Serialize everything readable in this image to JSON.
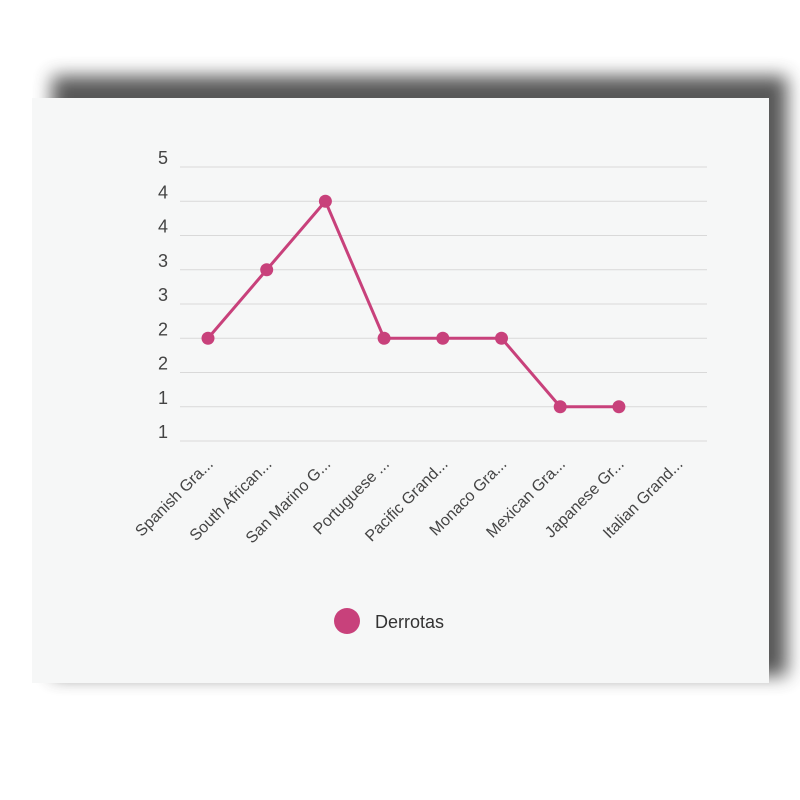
{
  "chart_data": {
    "type": "line",
    "categories": [
      "Spanish Gra...",
      "South African...",
      "San Marino G...",
      "Portuguese ...",
      "Pacific Grand...",
      "Monaco Gra...",
      "Mexican Gra...",
      "Japanese Gr...",
      "Italian Grand..."
    ],
    "series": [
      {
        "name": "Derrotas",
        "values": [
          2,
          3,
          4,
          2,
          2,
          2,
          1,
          1,
          null
        ]
      }
    ],
    "ytick_labels": [
      "1",
      "1",
      "2",
      "2",
      "3",
      "3",
      "4",
      "4",
      "5"
    ],
    "ylim": [
      0.5,
      4.5
    ],
    "grid": true,
    "legend": "bottom",
    "colors": {
      "series": "#c8417b",
      "grid": "#d9d9d9",
      "text": "#444444"
    }
  }
}
